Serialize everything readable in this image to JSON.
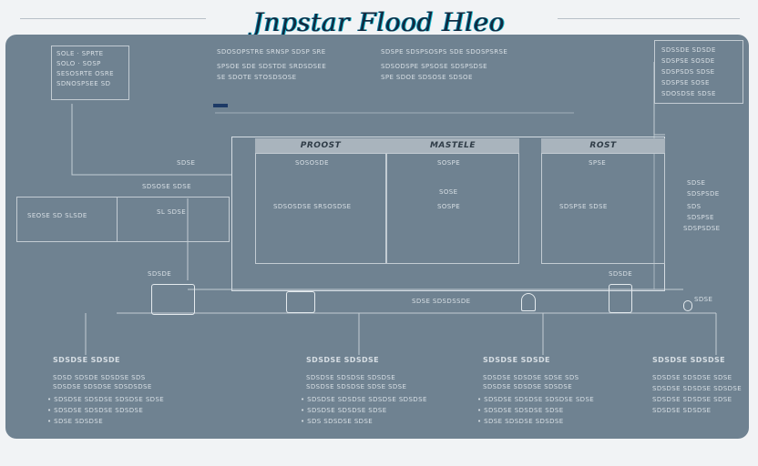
{
  "header": {
    "title": "Jnpstar Flood Hleo"
  },
  "notes": {
    "top_left_box": [
      "SOLE · SPRTE",
      "SOLO · SOSP",
      "SESOSRTE OSRE",
      "SDNOSPSEE SD"
    ],
    "top_center_left": [
      "SDOSOPSTRE SRNSP SDSP SRE",
      "SPSOE SDE SDSTDE SRDSDSEE",
      "SE SDOTE STOSDSOSE"
    ],
    "top_center_right": [
      "SDSPE SDSPSOSPS SDE SDOSPSRSE",
      "SDSODSPE SPSOSE SDSPSDSE",
      "SPE SDOE SDSOSE SDSOE"
    ],
    "top_right_box": [
      "SDSSDE SDSDE",
      "SDSPSE SOSDE",
      "SDSPSDS SDSE",
      "SDSPSE SOSE",
      "SDOSDSE SDSE"
    ]
  },
  "matrix": {
    "columns": [
      "PROOST",
      "MASTELE",
      "ROST"
    ],
    "cells": [
      [
        "SOSOSDE",
        "SOSPE",
        "SPSE"
      ],
      [
        "SDSOSDSE SRSOSDSE",
        "SOSPE",
        "SDSPSE SDSE"
      ],
      [
        "",
        "SOSE",
        ""
      ]
    ]
  },
  "side_labels": {
    "upper_left": [
      "SDSE",
      "SDSOSE SDSE"
    ],
    "left_box_outer": "SEOSE SD SLSDE",
    "left_box_inner": "SL SDSE",
    "bus_label": "SDSE SDSDSSDE",
    "right_cluster": [
      "SDSE",
      "SDSPSDE",
      "SDS",
      "SDSPSE",
      "SDSPSDSE"
    ]
  },
  "devices": {
    "labels": [
      "SDSDE",
      "SDSDE",
      "SDSE"
    ],
    "icons": [
      "panel-device-icon",
      "monitor-icon",
      "sensor-icon",
      "meter-icon",
      "plug-icon"
    ]
  },
  "bottom_sections": [
    {
      "title": "SDSDSE SDSDE",
      "lines": [
        "SDSD SDSDE SDSDSE SDS",
        "SDSDSE SDSDSE SDSDSDSE",
        "• SDSDSE SDSDSE SDSDSE SDSE",
        "• SDSDSE SDSDSE SDSDSE",
        "• SDSE SDSDSE"
      ]
    },
    {
      "title": "SDSDSE SDSDSE",
      "lines": [
        "SDSDSE SDSDSE SDSDSE",
        "SDSDSE SDSDSE SDSE SDSE",
        "• SDSDSE SDSDSE SDSDSE SDSDSE",
        "• SDSDSE SDSDSE SDSE",
        "• SDS SDSDSE SDSE"
      ]
    },
    {
      "title": "SDSDSE SDSDE",
      "lines": [
        "SDSDSE SDSDSE SDSE SDS",
        "SDSDSE SDSDSE SDSDSE",
        "• SDSDSE SDSDSE SDSDSE SDSE",
        "• SDSDSE SDSDSE SDSE",
        "• SDSE SDSDSE SDSDSE"
      ]
    },
    {
      "title": "SDSDSE SDSDSE",
      "lines": [
        "SDSDSE SDSDSE SDSE",
        "SDSDSE SDSDSE SDSDSE",
        "SDSDSE SDSDSE SDSE",
        "SDSDSE SDSDSE"
      ]
    }
  ]
}
